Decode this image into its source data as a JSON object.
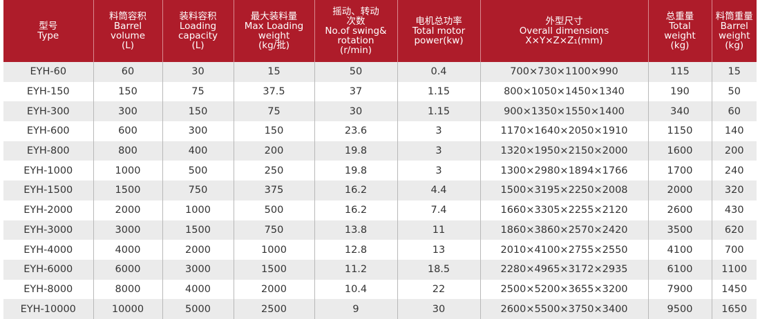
{
  "table": {
    "header": [
      [
        "型号",
        "Type"
      ],
      [
        "料筒容积",
        "Barrel",
        "volume",
        "(L)"
      ],
      [
        "装料容积",
        "Loading",
        "capacity",
        "(L)"
      ],
      [
        "最大装料量",
        "Max Loading",
        "weight",
        "(kg/批)"
      ],
      [
        "摇动、转动",
        "次数",
        "No.of swing&",
        "rotation",
        "(r/min)"
      ],
      [
        "电机总功率",
        "Total motor",
        "power(kw)"
      ],
      [
        "外型尺寸",
        "Overall dimensions",
        "X×Y×Z×Z₁(mm)"
      ],
      [
        "总重量",
        "Total",
        "weight",
        "(kg)"
      ],
      [
        "料筒重量",
        "Barrel",
        "weight",
        "(kg)"
      ]
    ],
    "rows": [
      [
        "EYH-60",
        60,
        30,
        15,
        50,
        0.4,
        "700×730×1100×990",
        115,
        15
      ],
      [
        "EYH-150",
        150,
        75,
        37.5,
        37,
        1.15,
        "800×1050×1450×1340",
        190,
        50
      ],
      [
        "EYH-300",
        300,
        150,
        75,
        30,
        1.15,
        "900×1350×1550×1400",
        340,
        60
      ],
      [
        "EYH-600",
        600,
        300,
        150,
        23.6,
        3,
        "1170×1640×2050×1910",
        1150,
        140
      ],
      [
        "EYH-800",
        800,
        400,
        200,
        19.8,
        3,
        "1320×1950×2150×2000",
        1600,
        200
      ],
      [
        "EYH-1000",
        1000,
        500,
        250,
        19.8,
        3,
        "1300×2980×1894×1766",
        1700,
        240
      ],
      [
        "EYH-1500",
        1500,
        750,
        375,
        16.2,
        4.4,
        "1500×3195×2250×2008",
        2000,
        320
      ],
      [
        "EYH-2000",
        2000,
        1000,
        500,
        16.2,
        7.4,
        "1660×3305×2255×2120",
        2600,
        430
      ],
      [
        "EYH-3000",
        3000,
        1500,
        750,
        13.8,
        11,
        "1860×3860×2570×2420",
        3500,
        620
      ],
      [
        "EYH-4000",
        4000,
        2000,
        1000,
        12.8,
        13,
        "2010×4100×2755×2550",
        4100,
        700
      ],
      [
        "EYH-6000",
        6000,
        3000,
        1500,
        11.2,
        18.5,
        "2280×4965×3172×2935",
        6100,
        1100
      ],
      [
        "EYH-8000",
        8000,
        4000,
        2000,
        10.4,
        22,
        "2500×5200×3655×3200",
        7900,
        1450
      ],
      [
        "EYH-10000",
        10000,
        5000,
        2500,
        9,
        30,
        "2600×5500×3750×3400",
        9500,
        1650
      ]
    ]
  }
}
